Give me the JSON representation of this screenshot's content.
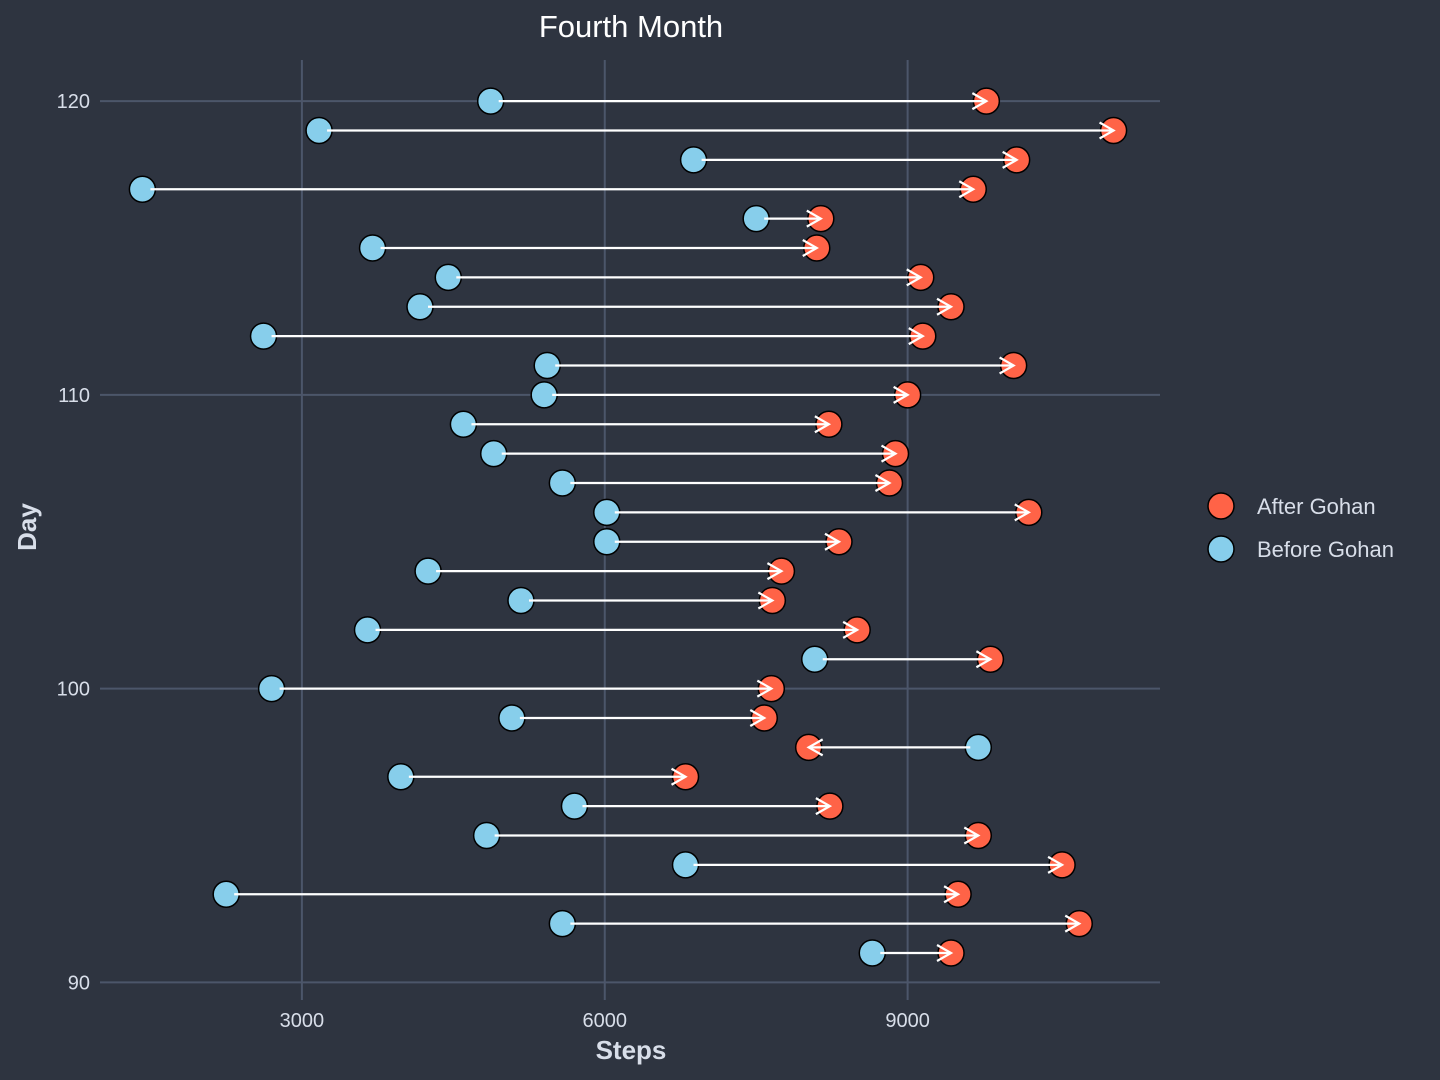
{
  "chart_data": {
    "type": "dumbbell",
    "title": "Fourth Month",
    "xlabel": "Steps",
    "ylabel": "Day",
    "xlim": [
      1000,
      11500
    ],
    "ylim": [
      89.4,
      121.4
    ],
    "x_ticks": [
      3000,
      6000,
      9000
    ],
    "y_ticks": [
      90,
      100,
      110,
      120
    ],
    "grid": true,
    "legend_position": "right",
    "colors": {
      "after": "#ff6347",
      "before": "#87ceeb",
      "background": "#2e3440",
      "grid": "#4c566a",
      "arrow": "#ffffff"
    },
    "series": [
      {
        "name": "After Gohan",
        "key": "after"
      },
      {
        "name": "Before Gohan",
        "key": "before"
      }
    ],
    "days": [
      91,
      92,
      93,
      94,
      95,
      96,
      97,
      98,
      99,
      100,
      101,
      102,
      103,
      104,
      105,
      106,
      107,
      108,
      109,
      110,
      111,
      112,
      113,
      114,
      115,
      116,
      117,
      118,
      119,
      120
    ],
    "before": [
      8650,
      5580,
      2250,
      6800,
      4830,
      5700,
      3980,
      9700,
      5080,
      2700,
      8080,
      3650,
      5170,
      4250,
      6020,
      6020,
      5580,
      4900,
      4600,
      5400,
      5430,
      2620,
      4170,
      4450,
      3700,
      7500,
      1420,
      6880,
      3170,
      4870
    ],
    "after": [
      9430,
      10700,
      9500,
      10530,
      9700,
      8230,
      6800,
      8020,
      7580,
      7650,
      9820,
      8500,
      7660,
      7750,
      8320,
      10200,
      8820,
      8880,
      8220,
      9000,
      10050,
      9150,
      9430,
      9130,
      8100,
      8140,
      9650,
      10080,
      11040,
      9780
    ]
  }
}
